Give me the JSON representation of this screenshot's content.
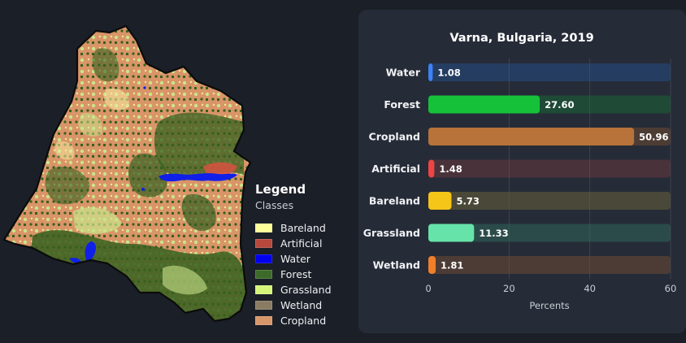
{
  "legend": {
    "title": "Legend",
    "subtitle": "Classes",
    "items": [
      {
        "label": "Bareland",
        "color": "#ffff99"
      },
      {
        "label": "Artificial",
        "color": "#b7483c"
      },
      {
        "label": "Water",
        "color": "#0000ee"
      },
      {
        "label": "Forest",
        "color": "#3d6a2a"
      },
      {
        "label": "Grassland",
        "color": "#d4f57a"
      },
      {
        "label": "Wetland",
        "color": "#8a7b63"
      },
      {
        "label": "Cropland",
        "color": "#d7976a"
      }
    ]
  },
  "map": {
    "colors": {
      "cropland": "#d99468",
      "forest": "#35601f",
      "grassland": "#c9e58a",
      "bareland": "#f3e79c",
      "water": "#1020e8",
      "artificial": "#d2533f",
      "outline": "#0b0b0b"
    }
  },
  "chart_data": {
    "type": "bar",
    "orientation": "horizontal",
    "title": "Varna, Bulgaria, 2019",
    "xlabel": "Percents",
    "ylabel": "",
    "xlim": [
      0,
      60
    ],
    "xticks": [
      0,
      20,
      40,
      60
    ],
    "categories": [
      "Water",
      "Forest",
      "Cropland",
      "Artificial",
      "Bareland",
      "Grassland",
      "Wetland"
    ],
    "values": [
      1.08,
      27.6,
      50.96,
      1.48,
      5.73,
      11.33,
      1.81
    ],
    "value_labels": [
      "1.08",
      "27.60",
      "50.96",
      "1.48",
      "5.73",
      "11.33",
      "1.81"
    ],
    "colors": [
      "#3b82f6",
      "#16c13a",
      "#b8733a",
      "#ef4444",
      "#f5c518",
      "#66e3a9",
      "#f07f2a"
    ],
    "track_colors": [
      "#253d61",
      "#1e4a36",
      "#4d3c34",
      "#4a323b",
      "#4a4838",
      "#2a4b49",
      "#4c3c35"
    ],
    "grid": true
  }
}
